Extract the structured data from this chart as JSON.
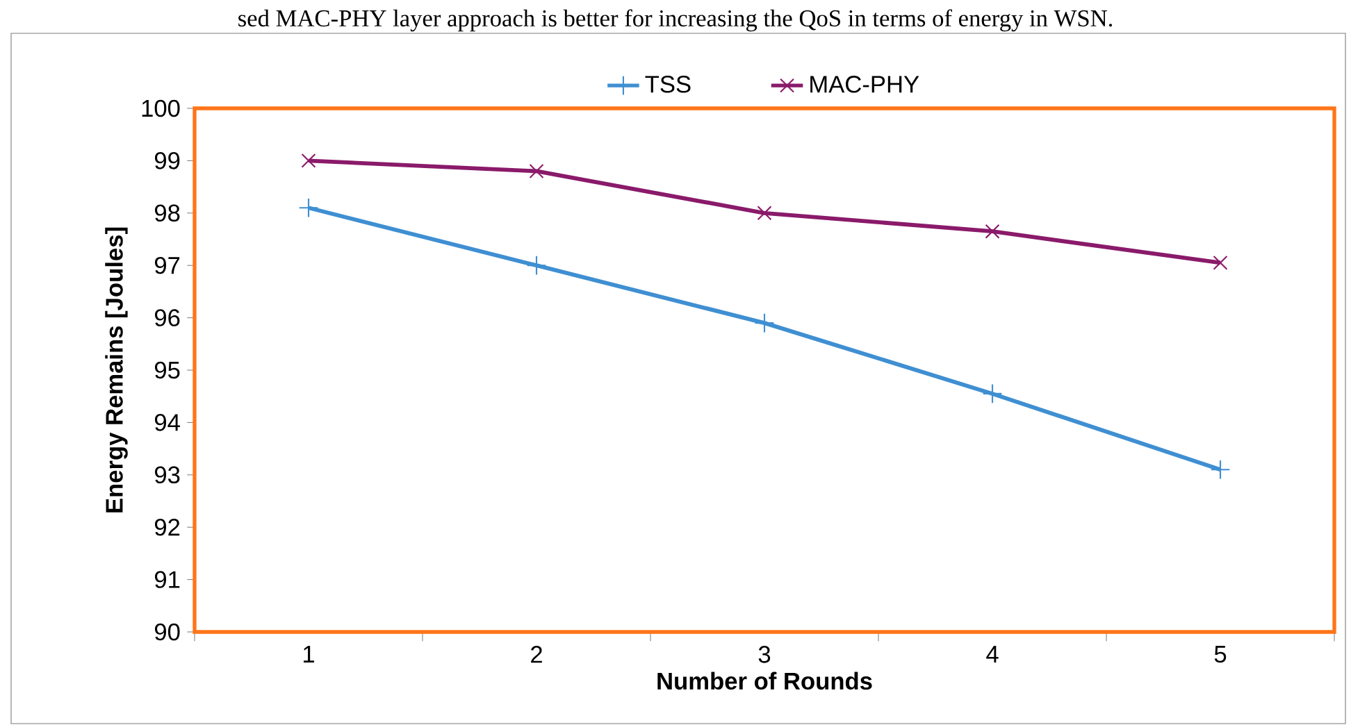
{
  "chart_data": {
    "type": "line",
    "xlabel": "Number of Rounds",
    "ylabel": "Energy Remains [Joules]",
    "annotations": [
      "sed MAC-PHY layer approach is better for increasing the QoS in terms of energy in WSN."
    ],
    "categories": [
      "1",
      "2",
      "3",
      "4",
      "5"
    ],
    "series": [
      {
        "name": "TSS",
        "color": "#3f8fd2",
        "marker": "plus",
        "values": [
          98.1,
          97.0,
          95.9,
          94.55,
          93.1
        ]
      },
      {
        "name": "MAC-PHY",
        "color": "#8a1a6a",
        "marker": "cross",
        "values": [
          99.0,
          98.8,
          98.0,
          97.65,
          97.05
        ]
      }
    ],
    "ylim": [
      90,
      100
    ],
    "yticks": [
      90,
      91,
      92,
      93,
      94,
      95,
      96,
      97,
      98,
      99,
      100
    ],
    "grid": false,
    "legend": "top",
    "line_style": "solid"
  }
}
